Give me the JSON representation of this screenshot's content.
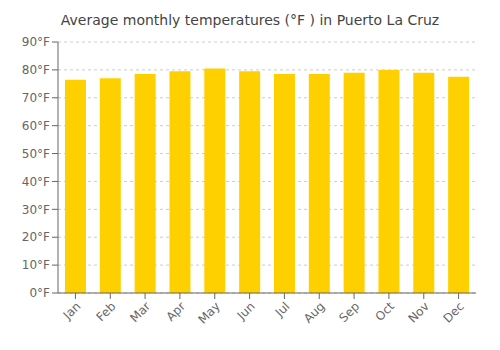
{
  "chart_data": {
    "type": "bar",
    "title": "Average monthly temperatures (°F ) in Puerto La Cruz",
    "categories": [
      "Jan",
      "Feb",
      "Mar",
      "Apr",
      "May",
      "Jun",
      "Jul",
      "Aug",
      "Sep",
      "Oct",
      "Nov",
      "Dec"
    ],
    "values": [
      76.5,
      77.0,
      78.5,
      79.5,
      80.5,
      79.5,
      78.5,
      78.5,
      79.0,
      80.0,
      79.0,
      77.5
    ],
    "color": "#FFD000",
    "ylim": [
      0,
      90
    ],
    "yticks": [
      {
        "value": 0,
        "label": "0°F"
      },
      {
        "value": 10,
        "label": "10°F"
      },
      {
        "value": 20,
        "label": "20°F"
      },
      {
        "value": 30,
        "label": "30°F"
      },
      {
        "value": 40,
        "label": "40°F"
      },
      {
        "value": 50,
        "label": "50°F"
      },
      {
        "value": 60,
        "label": "60°F"
      },
      {
        "value": 70,
        "label": "70°F"
      },
      {
        "value": 80,
        "label": "80°F"
      },
      {
        "value": 90,
        "label": "90°F"
      }
    ],
    "grid": true
  }
}
